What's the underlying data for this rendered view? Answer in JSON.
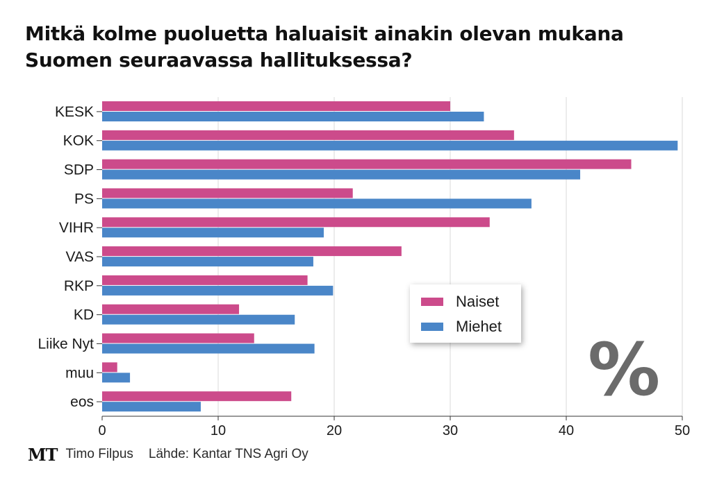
{
  "title": "Mitkä kolme puoluetta haluaisit ainakin olevan mukana Suomen seuraavassa hallituksessa?",
  "footer": {
    "logo": "MT",
    "author": "Timo Filpus",
    "source": "Lähde: Kantar TNS Agri Oy"
  },
  "unit_symbol": "%",
  "colors": {
    "naiset": "#cc4b8b",
    "miehet": "#4a86c8",
    "grid": "#d9d9d9"
  },
  "chart_data": {
    "type": "bar",
    "orientation": "horizontal",
    "title": "Mitkä kolme puoluetta haluaisit ainakin olevan mukana Suomen seuraavassa hallituksessa?",
    "categories": [
      "KESK",
      "KOK",
      "SDP",
      "PS",
      "VIHR",
      "VAS",
      "RKP",
      "KD",
      "Liike Nyt",
      "muu",
      "eos"
    ],
    "series": [
      {
        "name": "Naiset",
        "color": "#cc4b8b",
        "values": [
          30,
          35.5,
          45.6,
          21.6,
          33.4,
          25.8,
          17.7,
          11.8,
          13.1,
          1.3,
          16.3
        ]
      },
      {
        "name": "Miehet",
        "color": "#4a86c8",
        "values": [
          32.9,
          49.6,
          41.2,
          37.0,
          19.1,
          18.2,
          19.9,
          16.6,
          18.3,
          2.4,
          8.5
        ]
      }
    ],
    "xlim": [
      0,
      50
    ],
    "xticks": [
      0,
      10,
      20,
      30,
      40,
      50
    ],
    "grid": true,
    "legend_position": "right-middle"
  }
}
